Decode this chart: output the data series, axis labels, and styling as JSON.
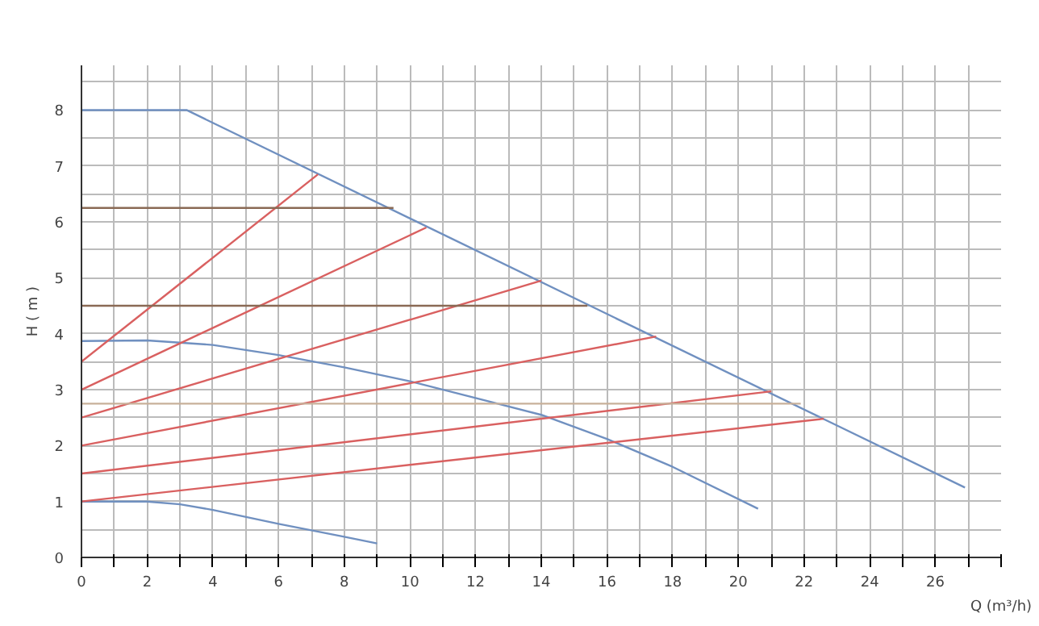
{
  "chart_data": {
    "type": "line",
    "xlabel": "Q (m³/h)",
    "ylabel": "H ( m )",
    "xlim": [
      0,
      28
    ],
    "ylim": [
      0,
      8.8
    ],
    "xticks": [
      0,
      {
        "value": 1,
        "label": null
      },
      2,
      {
        "value": 3,
        "label": null
      },
      4,
      {
        "value": 5,
        "label": null
      },
      6,
      {
        "value": 7,
        "label": null
      },
      8,
      {
        "value": 9,
        "label": null
      },
      10,
      {
        "value": 11,
        "label": null
      },
      12,
      {
        "value": 13,
        "label": null
      },
      14,
      {
        "value": 15,
        "label": null
      },
      16,
      {
        "value": 17,
        "label": null
      },
      18,
      {
        "value": 19,
        "label": null
      },
      20,
      {
        "value": 21,
        "label": null
      },
      22,
      {
        "value": 23,
        "label": null
      },
      24,
      {
        "value": 25,
        "label": null
      },
      26,
      {
        "value": 27,
        "label": null
      },
      {
        "value": 28,
        "label": null
      }
    ],
    "yticks": [
      0,
      {
        "value": 0.5,
        "label": null
      },
      1,
      {
        "value": 1.5,
        "label": null
      },
      2,
      {
        "value": 2.5,
        "label": null
      },
      3,
      {
        "value": 3.5,
        "label": null
      },
      4,
      {
        "value": 4.5,
        "label": null
      },
      5,
      {
        "value": 5.5,
        "label": null
      },
      6,
      {
        "value": 6.5,
        "label": null
      },
      7,
      {
        "value": 7.5,
        "label": null
      },
      8,
      {
        "value": 8.5,
        "label": null
      }
    ],
    "grid": true,
    "marker": "none",
    "line_style": "solid",
    "series": [
      {
        "color": "#7090c0",
        "x": [
          0,
          3.2,
          26.9
        ],
        "values": [
          8,
          8,
          1.25
        ]
      },
      {
        "color": "#7090c0",
        "x": [
          0,
          2,
          4,
          6,
          8,
          10,
          12,
          14,
          16,
          18,
          20.6
        ],
        "values": [
          3.87,
          3.88,
          3.8,
          3.62,
          3.4,
          3.15,
          2.85,
          2.55,
          2.12,
          1.62,
          0.87
        ]
      },
      {
        "color": "#7090c0",
        "x": [
          0,
          2,
          3,
          4,
          6,
          8,
          9
        ],
        "values": [
          1,
          1,
          0.95,
          0.85,
          0.6,
          0.37,
          0.25
        ]
      },
      {
        "color": "#d96060",
        "x": [
          0,
          7.2
        ],
        "values": [
          3.5,
          6.85
        ]
      },
      {
        "color": "#d96060",
        "x": [
          0,
          10.5
        ],
        "values": [
          3,
          5.9
        ]
      },
      {
        "color": "#d96060",
        "x": [
          0,
          14
        ],
        "values": [
          2.5,
          4.95
        ]
      },
      {
        "color": "#d96060",
        "x": [
          0,
          17.5
        ],
        "values": [
          2,
          3.95
        ]
      },
      {
        "color": "#d96060",
        "x": [
          0,
          21
        ],
        "values": [
          1.5,
          2.97
        ]
      },
      {
        "color": "#d96060",
        "x": [
          0,
          22.6
        ],
        "values": [
          1,
          2.48
        ]
      },
      {
        "color": "#8a6a55",
        "x": [
          0,
          9.5
        ],
        "values": [
          6.25,
          6.25
        ]
      },
      {
        "color": "#8a6a55",
        "x": [
          0,
          15.4
        ],
        "values": [
          4.5,
          4.5
        ]
      },
      {
        "color": "#c8b09a",
        "x": [
          0,
          21.9
        ],
        "values": [
          2.75,
          2.75
        ]
      }
    ]
  }
}
